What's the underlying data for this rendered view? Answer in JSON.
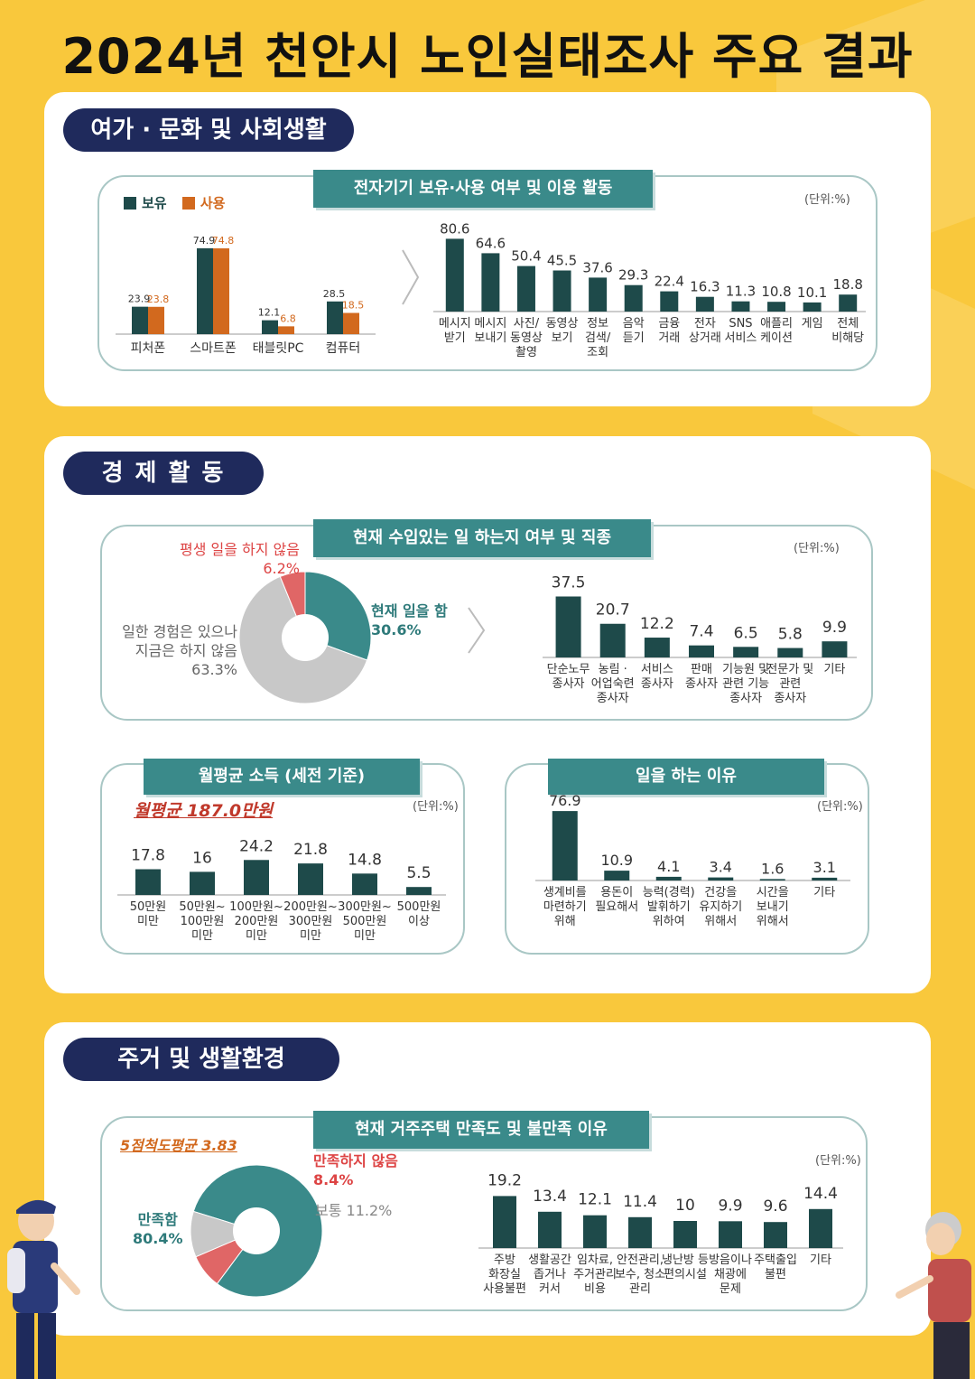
{
  "title": "2024년 천안시 노인실태조사 주요 결과",
  "colors": {
    "dark_teal": "#1e4a4a",
    "teal": "#3a8a8a",
    "orange": "#d2691e",
    "red": "#e06666",
    "gray": "#c8c8c8",
    "navy": "#1f2a5c",
    "bg": "#f9c83c"
  },
  "sections": {
    "leisure": "여가 · 문화 및 사회생활",
    "economy": "경 제 활 동",
    "housing": "주거 및 생활환경"
  },
  "unit_label": "(단위:%)",
  "devices": {
    "banner": "전자기기 보유·사용 여부 및 이용 활동",
    "legend": [
      "보유",
      "사용"
    ],
    "chart_data": {
      "type": "bar",
      "categories": [
        "피처폰",
        "스마트폰",
        "태블릿PC",
        "컴퓨터"
      ],
      "series": [
        {
          "name": "보유",
          "values": [
            23.9,
            74.9,
            12.1,
            28.5
          ]
        },
        {
          "name": "사용",
          "values": [
            23.8,
            74.8,
            6.8,
            18.5
          ]
        }
      ]
    }
  },
  "activities": {
    "chart_data": {
      "type": "bar",
      "categories": [
        [
          "메시지",
          "받기"
        ],
        [
          "메시지",
          "보내기"
        ],
        [
          "사진/",
          "동영상",
          "촬영"
        ],
        [
          "동영상",
          "보기"
        ],
        [
          "정보",
          "검색/",
          "조회"
        ],
        [
          "음악",
          "듣기"
        ],
        [
          "금융",
          "거래"
        ],
        [
          "전자",
          "상거래"
        ],
        [
          "SNS",
          "서비스"
        ],
        [
          "애플리",
          "케이션"
        ],
        [
          "게임"
        ],
        [
          "전체",
          "비해당"
        ]
      ],
      "values": [
        80.6,
        64.6,
        50.4,
        45.5,
        37.6,
        29.3,
        22.4,
        16.3,
        11.3,
        10.8,
        10.1,
        18.8
      ]
    }
  },
  "work_status": {
    "banner": "현재 수입있는 일 하는지 여부 및 직종",
    "chart_data": {
      "type": "pie",
      "slices": [
        {
          "label": "현재 일을 함",
          "value": 30.6
        },
        {
          "label": "일한 경험은 있으나 지금은 하지 않음",
          "value": 63.3
        },
        {
          "label": "평생 일을 하지 않음",
          "value": 6.2
        }
      ]
    },
    "labels": {
      "working": "현재 일을 함",
      "working_val": "30.6%",
      "past1": "일한 경험은 있으나",
      "past2": "지금은 하지 않음",
      "past_val": "63.3%",
      "never": "평생 일을 하지 않음",
      "never_val": "6.2%"
    }
  },
  "occupation": {
    "chart_data": {
      "type": "bar",
      "categories": [
        [
          "단순노무",
          "종사자"
        ],
        [
          "농림 ·",
          "어업숙련",
          "종사자"
        ],
        [
          "서비스",
          "종사자"
        ],
        [
          "판매",
          "종사자"
        ],
        [
          "기능원 및",
          "관련 기능",
          "종사자"
        ],
        [
          "전문가 및",
          "관련",
          "종사자"
        ],
        [
          "기타"
        ]
      ],
      "values": [
        37.5,
        20.7,
        12.2,
        7.4,
        6.5,
        5.8,
        9.9
      ]
    }
  },
  "income": {
    "banner": "월평균 소득 (세전 기준)",
    "average": "월평균 187.0만원",
    "chart_data": {
      "type": "bar",
      "categories": [
        [
          "50만원",
          "미만"
        ],
        [
          "50만원~",
          "100만원",
          "미만"
        ],
        [
          "100만원~",
          "200만원",
          "미만"
        ],
        [
          "200만원~",
          "300만원",
          "미만"
        ],
        [
          "300만원~",
          "500만원",
          "미만"
        ],
        [
          "500만원",
          "이상"
        ]
      ],
      "values": [
        17.8,
        16.0,
        24.2,
        21.8,
        14.8,
        5.5
      ]
    }
  },
  "work_reason": {
    "banner": "일을 하는 이유",
    "chart_data": {
      "type": "bar",
      "categories": [
        [
          "생계비를",
          "마련하기",
          "위해"
        ],
        [
          "용돈이",
          "필요해서"
        ],
        [
          "능력(경력)",
          "발휘하기",
          "위하여"
        ],
        [
          "건강을",
          "유지하기",
          "위해서"
        ],
        [
          "시간을",
          "보내기",
          "위해서"
        ],
        [
          "기타"
        ]
      ],
      "values": [
        76.9,
        10.9,
        4.1,
        3.4,
        1.6,
        3.1
      ]
    }
  },
  "housing_sat": {
    "banner": "현재 거주주택 만족도 및 불만족 이유",
    "average": "5점척도평균 3.83",
    "chart_data": {
      "type": "pie",
      "slices": [
        {
          "label": "만족함",
          "value": 80.4
        },
        {
          "label": "만족하지 않음",
          "value": 8.4
        },
        {
          "label": "보통",
          "value": 11.2
        }
      ]
    },
    "labels": {
      "sat": "만족함",
      "sat_val": "80.4%",
      "unsat": "만족하지 않음",
      "unsat_val": "8.4%",
      "normal": "보통 11.2%"
    }
  },
  "dissatisfaction": {
    "chart_data": {
      "type": "bar",
      "categories": [
        [
          "주방",
          "화장실",
          "사용불편"
        ],
        [
          "생활공간",
          "좁거나",
          "커서"
        ],
        [
          "임차료,",
          "주거관리",
          "비용"
        ],
        [
          "안전관리,",
          "보수, 청소",
          "관리"
        ],
        [
          "냉난방 등",
          "편의시설"
        ],
        [
          "방음이나",
          "채광에",
          "문제"
        ],
        [
          "주택출입",
          "불편"
        ],
        [
          "기타"
        ]
      ],
      "values": [
        19.2,
        13.4,
        12.1,
        11.4,
        10.0,
        9.9,
        9.6,
        14.4
      ]
    }
  }
}
